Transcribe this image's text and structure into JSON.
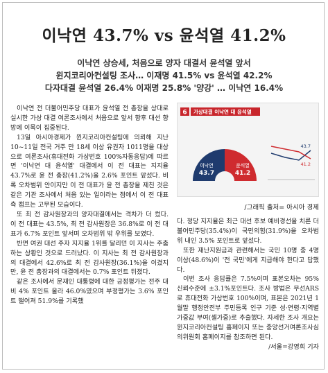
{
  "headline": "이낙연 43.7% vs 윤석열 41.2%",
  "subheads": [
    "이낙연 상승세, 처음으로 양자 대결서 윤석열 앞서",
    "윈지코리아컨설팅 조사… 이재명 41.5% vs 윤석열 42.2%",
    "다자대결 윤석열 26.4% 이재명 25.8% '양강' … 이낙연 16.4%"
  ],
  "left_column": [
    "이낙연 전 더불어민주당 대표가 윤석열 전 총장을 상대로 실시한 가상 대결 여론조사에서 처음으로 앞서 향후 대선 향방에 이목이 집중된다.",
    "13일 아시아경제가 윈지코리아컨설팅에 의뢰해 지난 10~11일 전국 거주 만 18세 이상 유권자 1011명을 대상으로 여론조사(휴대전화 가상번호 100%자동응답)에 따르면 '이낙연 대 윤석열' 대결에서 이 전 대표는 지지율 43.7%로 윤 전 총장(41.2%)을 2.6% 포인트 앞섰다. 비록 오차범위 안이지만 이 전 대표가 윤 전 총장을 제친 것은 같은 기관 조사에서 처음 있는 일이라는 점에서 이 전 대표측 캠프는 고무된 모습이다.",
    "또 최 전 감사원장과의 양자대결에서는 격차가 더 컸다. 이 전 대표는 43.5%, 최 전 감사원장은 36.8%로 이 전 대표가 6.7% 포인트 앞서며 오차범위 밖 우위를 보였다.",
    "반면 여권 대선 주자 지지율 1위를 달리던 이 지사는 주춤하는 상황인 것으로 드러났다. 이 지사는 최 전 감사원장과의 대결에서 42.6%로 최 전 감사원장(36.1%)을 이겼지만, 윤 전 총장과의 대결에서는 0.7% 포인트 뒤졌다.",
    "같은 조사에서 문재인 대통령에 대한 긍정평가는 전주 대비 4% 포인트 올라 46.0%였으며 부정평가는 3.6% 포인트 떨어져 51.9%를 기록했"
  ],
  "figure": {
    "number": "6",
    "title": "가상대결 이낙연 대 윤석열",
    "left_name": "이낙연",
    "left_value": "43.7",
    "right_name": "윤석열",
    "right_value": "41.2",
    "caption": "/그래픽 출처= 아시아 경제"
  },
  "right_column": [
    "다. 정당 지지율은 최근 대선 후보 예비경선을 치른 더불어민주당(35.4%)이 국민의힘(31.9%)을 오차범위 내인 3.5% 포인트로 앞섰다.",
    "또한 재난지원금과 관련해서는 국민 10명 중 4명 이상(48.6%)이 '전 국민'에게 지급해야 한다고 답했다.",
    "이번 조사 응답률은 7.5%이며 표본오차는 95% 신뢰수준에 ±3.1%포인트다. 조사 방법은 무선ARS로 휴대전화 가상번호 100%이며, 표본은 2021년 1월말 행정안전부 주민등록 인구 기준 성·연령·지역별 가중값 부여(셀가중)로 추출했다. 자세한 조사 개요는 윈지코리아컨설팅 홈페이지 또는 중앙선거여론조사심의위원회 홈페이지를 참조하면 된다."
  ],
  "byline": "/서울=강영희 기자"
}
